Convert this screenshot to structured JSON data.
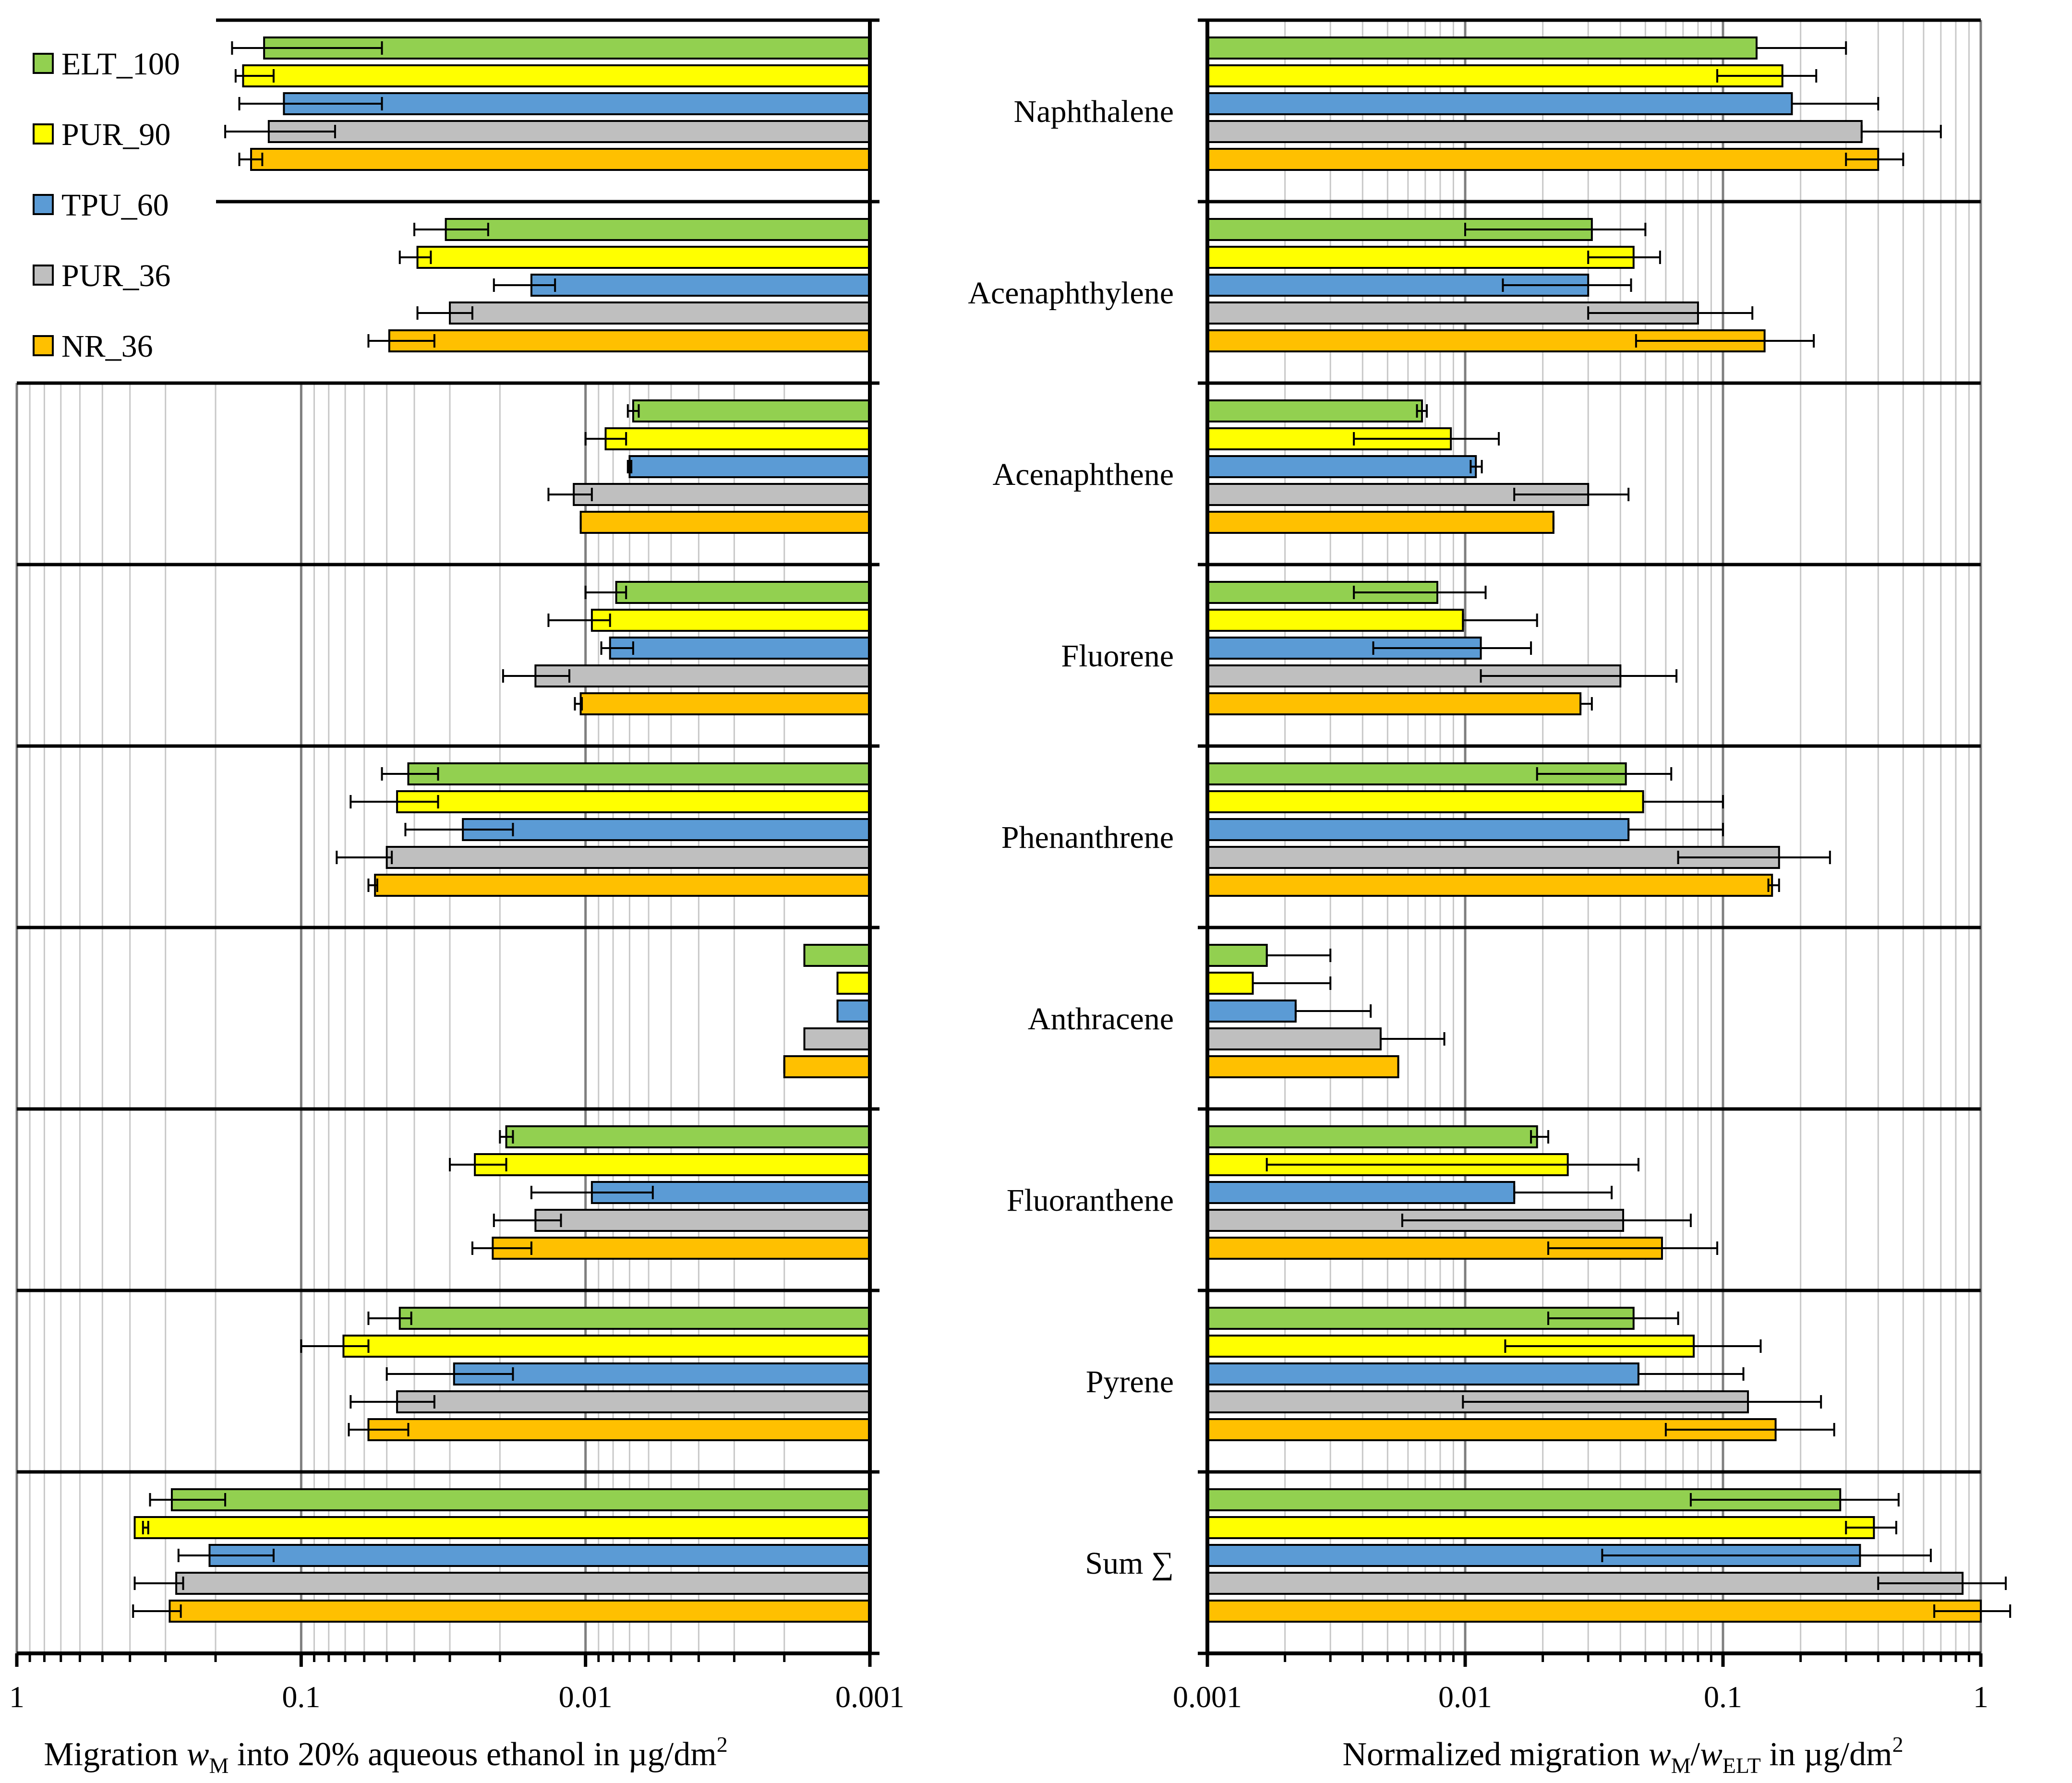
{
  "chart_data": [
    {
      "type": "bar",
      "orientation": "horizontal",
      "xscale": "log",
      "xaxis_reversed": true,
      "xlabel_parts": [
        "Migration ",
        "w",
        "M",
        " into 20% aqueous ethanol in µg/dm",
        "2"
      ],
      "xlim": [
        0.001,
        1
      ],
      "xticks": [
        "1",
        "0.1",
        "0.01",
        "0.001"
      ],
      "categories": [
        "Naphthalene",
        "Acenaphthylene",
        "Acenaphthene",
        "Fluorene",
        "Phenanthrene",
        "Anthracene",
        "Fluoranthene",
        "Pyrene",
        "Sum ∑"
      ],
      "series": [
        {
          "name": "ELT_100",
          "color": "#92d050",
          "values": [
            0.135,
            0.031,
            0.0068,
            0.0078,
            0.042,
            0.0017,
            0.019,
            0.045,
            0.285
          ],
          "err_low": [
            0.052,
            0.022,
            0.0065,
            0.0072,
            0.033,
            0.0017,
            0.018,
            0.041,
            0.185
          ],
          "err_high": [
            0.175,
            0.04,
            0.0071,
            0.01,
            0.052,
            0.0017,
            0.02,
            0.058,
            0.34
          ]
        },
        {
          "name": "PUR_90",
          "color": "#ffff00",
          "values": [
            0.16,
            0.039,
            0.0085,
            0.0095,
            0.046,
            0.0013,
            0.0245,
            0.071,
            0.385
          ],
          "err_low": [
            0.125,
            0.035,
            0.0072,
            0.0082,
            0.033,
            0.0013,
            0.019,
            0.058,
            0.345
          ],
          "err_high": [
            0.17,
            0.045,
            0.01,
            0.0135,
            0.067,
            0.0013,
            0.03,
            0.1,
            0.36
          ]
        },
        {
          "name": "TPU_60",
          "color": "#5b9bd5",
          "values": [
            0.115,
            0.0155,
            0.007,
            0.0082,
            0.027,
            0.0013,
            0.0095,
            0.029,
            0.21
          ],
          "err_low": [
            0.052,
            0.0128,
            0.0069,
            0.0068,
            0.018,
            0.0013,
            0.0058,
            0.018,
            0.125
          ],
          "err_high": [
            0.165,
            0.021,
            0.0071,
            0.0088,
            0.043,
            0.0013,
            0.0155,
            0.05,
            0.27
          ]
        },
        {
          "name": "PUR_36",
          "color": "#bfbfbf",
          "values": [
            0.13,
            0.03,
            0.011,
            0.015,
            0.05,
            0.0017,
            0.015,
            0.046,
            0.275
          ],
          "err_low": [
            0.076,
            0.025,
            0.0095,
            0.0114,
            0.048,
            0.0017,
            0.0122,
            0.034,
            0.26
          ],
          "err_high": [
            0.185,
            0.039,
            0.0135,
            0.0195,
            0.075,
            0.0017,
            0.021,
            0.067,
            0.385
          ]
        },
        {
          "name": "NR_36",
          "color": "#ffc000",
          "values": [
            0.15,
            0.049,
            0.0104,
            0.0104,
            0.055,
            0.002,
            0.0212,
            0.058,
            0.29
          ],
          "err_low": [
            0.137,
            0.034,
            0.0104,
            0.0103,
            0.054,
            0.002,
            0.0155,
            0.042,
            0.265
          ],
          "err_high": [
            0.165,
            0.058,
            0.0104,
            0.0109,
            0.058,
            0.002,
            0.025,
            0.068,
            0.39
          ]
        }
      ]
    },
    {
      "type": "bar",
      "orientation": "horizontal",
      "xscale": "log",
      "xaxis_reversed": false,
      "xlabel_parts": [
        "Normalized migration ",
        "w",
        "M",
        "/",
        "w",
        "ELT",
        " in µg/dm",
        "2"
      ],
      "xlim": [
        0.001,
        1
      ],
      "xticks": [
        "0.001",
        "0.01",
        "0.1",
        "1"
      ],
      "categories": [
        "Naphthalene",
        "Acenaphthylene",
        "Acenaphthene",
        "Fluorene",
        "Phenanthrene",
        "Anthracene",
        "Fluoranthene",
        "Pyrene",
        "Sum ∑"
      ],
      "series": [
        {
          "name": "ELT_100",
          "color": "#92d050",
          "values": [
            0.135,
            0.031,
            0.0068,
            0.0078,
            0.042,
            0.0017,
            0.019,
            0.045,
            0.285
          ],
          "err_low": [
            0.135,
            0.01,
            0.0065,
            0.0037,
            0.019,
            0.0017,
            0.018,
            0.021,
            0.075
          ],
          "err_high": [
            0.3,
            0.05,
            0.0071,
            0.012,
            0.063,
            0.003,
            0.021,
            0.067,
            0.48
          ]
        },
        {
          "name": "PUR_90",
          "color": "#ffff00",
          "values": [
            0.17,
            0.045,
            0.0088,
            0.0098,
            0.049,
            0.0015,
            0.025,
            0.077,
            0.385
          ],
          "err_low": [
            0.095,
            0.03,
            0.0037,
            0.0098,
            0.049,
            0.0015,
            0.0017,
            0.0143,
            0.3
          ],
          "err_high": [
            0.23,
            0.057,
            0.0135,
            0.019,
            0.1,
            0.003,
            0.047,
            0.14,
            0.47
          ]
        },
        {
          "name": "TPU_60",
          "color": "#5b9bd5",
          "values": [
            0.185,
            0.03,
            0.011,
            0.0115,
            0.043,
            0.0022,
            0.0155,
            0.047,
            0.34
          ],
          "err_low": [
            0.185,
            0.014,
            0.0105,
            0.0044,
            0.043,
            0.0022,
            0.0155,
            0.047,
            0.034
          ],
          "err_high": [
            0.4,
            0.044,
            0.0116,
            0.018,
            0.1,
            0.0043,
            0.037,
            0.12,
            0.64
          ]
        },
        {
          "name": "PUR_36",
          "color": "#bfbfbf",
          "values": [
            0.345,
            0.08,
            0.03,
            0.04,
            0.165,
            0.0047,
            0.041,
            0.125,
            0.85
          ],
          "err_low": [
            0.345,
            0.03,
            0.0155,
            0.0115,
            0.067,
            0.0047,
            0.0057,
            0.0098,
            0.4
          ],
          "err_high": [
            0.7,
            0.13,
            0.043,
            0.066,
            0.26,
            0.0083,
            0.075,
            0.24,
            1.25
          ]
        },
        {
          "name": "NR_36",
          "color": "#ffc000",
          "values": [
            0.4,
            0.145,
            0.022,
            0.028,
            0.155,
            0.0055,
            0.058,
            0.16,
            1.0
          ],
          "err_low": [
            0.3,
            0.046,
            0.022,
            0.028,
            0.15,
            0.0055,
            0.021,
            0.06,
            0.66
          ],
          "err_high": [
            0.5,
            0.225,
            0.022,
            0.031,
            0.165,
            0.0055,
            0.095,
            0.27,
            1.3
          ]
        }
      ]
    }
  ]
}
